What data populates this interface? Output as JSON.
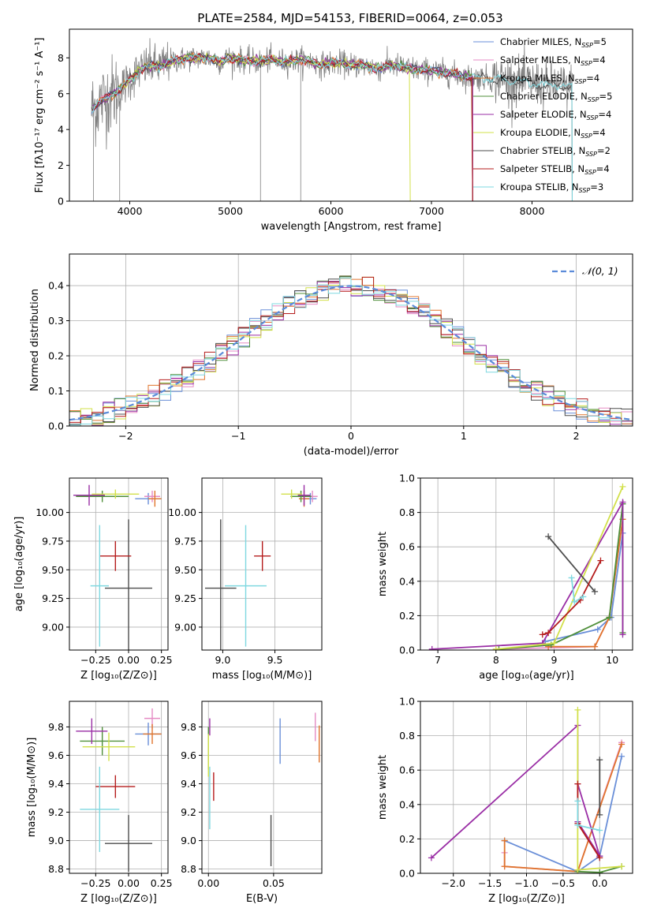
{
  "figure": {
    "title": "PLATE=2584, MJD=54153, FIBERID=0064, z=0.053",
    "legend": [
      {
        "label": "Chabrier MILES, N",
        "sub": "SSP",
        "count": "=5",
        "color": "#6a8fd8"
      },
      {
        "label": "Salpeter MILES, N",
        "sub": "SSP",
        "count": "=4",
        "color": "#e58bc4"
      },
      {
        "label": "Kroupa MILES, N",
        "sub": "SSP",
        "count": "=4",
        "color": "#e0752d"
      },
      {
        "label": "Chabrier ELODIE, N",
        "sub": "SSP",
        "count": "=5",
        "color": "#4f8f3a"
      },
      {
        "label": "Salpeter ELODIE, N",
        "sub": "SSP",
        "count": "=4",
        "color": "#9a2ea5"
      },
      {
        "label": "Kroupa ELODIE, N",
        "sub": "SSP",
        "count": "=4",
        "color": "#d2e04a"
      },
      {
        "label": "Chabrier STELIB, N",
        "sub": "SSP",
        "count": "=2",
        "color": "#4d4d4d"
      },
      {
        "label": "Salpeter STELIB, N",
        "sub": "SSP",
        "count": "=4",
        "color": "#b51c1c"
      },
      {
        "label": "Kroupa STELIB, N",
        "sub": "SSP",
        "count": "=3",
        "color": "#7fd8e0"
      }
    ],
    "data_color": "#808080"
  },
  "chart_data": [
    {
      "id": "spectrum",
      "type": "line",
      "xlabel": "wavelength [Angstrom, rest frame]",
      "ylabel": "Flux [fλ10⁻¹⁷ erg cm⁻² s⁻¹ A⁻¹]",
      "xlim": [
        3400,
        9000
      ],
      "ylim": [
        0,
        9.6
      ],
      "xticks": [
        4000,
        5000,
        6000,
        7000,
        8000
      ],
      "yticks": [
        0,
        2,
        4,
        6,
        8
      ],
      "continuum": [
        [
          3620,
          5.1
        ],
        [
          3700,
          5.5
        ],
        [
          3800,
          5.9
        ],
        [
          3900,
          6.2
        ],
        [
          4000,
          6.8
        ],
        [
          4100,
          7.3
        ],
        [
          4200,
          7.6
        ],
        [
          4300,
          7.5
        ],
        [
          4400,
          7.8
        ],
        [
          4500,
          7.9
        ],
        [
          4600,
          8.0
        ],
        [
          4700,
          8.0
        ],
        [
          4800,
          8.0
        ],
        [
          4900,
          7.8
        ],
        [
          5000,
          8.0
        ],
        [
          5100,
          7.9
        ],
        [
          5200,
          7.8
        ],
        [
          5300,
          7.8
        ],
        [
          5400,
          7.9
        ],
        [
          5500,
          7.8
        ],
        [
          5600,
          7.8
        ],
        [
          5700,
          7.9
        ],
        [
          5800,
          7.8
        ],
        [
          5900,
          7.6
        ],
        [
          6000,
          7.7
        ],
        [
          6100,
          7.7
        ],
        [
          6200,
          7.6
        ],
        [
          6300,
          7.6
        ],
        [
          6400,
          7.5
        ],
        [
          6500,
          7.4
        ],
        [
          6600,
          7.6
        ],
        [
          6700,
          7.5
        ],
        [
          6800,
          7.4
        ],
        [
          6900,
          7.3
        ],
        [
          7000,
          7.3
        ],
        [
          7100,
          7.2
        ],
        [
          7200,
          7.1
        ],
        [
          7300,
          7.0
        ],
        [
          7400,
          6.9
        ],
        [
          7500,
          6.9
        ],
        [
          7600,
          6.8
        ],
        [
          7700,
          6.8
        ],
        [
          7800,
          6.7
        ],
        [
          7900,
          6.7
        ],
        [
          8000,
          6.6
        ],
        [
          8100,
          6.5
        ],
        [
          8200,
          6.5
        ],
        [
          8300,
          6.4
        ],
        [
          8400,
          6.4
        ]
      ],
      "model_starts": [
        3620,
        3650,
        3680,
        3650,
        3630,
        3900,
        3620,
        3620,
        3620
      ],
      "model_ends": [
        7410,
        7410,
        7410,
        7410,
        7410,
        6790,
        8400,
        7410,
        8400
      ]
    },
    {
      "id": "residual-histogram",
      "type": "step",
      "xlabel": "(data-model)/error",
      "ylabel": "Normed distribution",
      "xlim": [
        -2.5,
        2.5
      ],
      "ylim": [
        0,
        0.49
      ],
      "xticks": [
        -2,
        -1,
        0,
        1,
        2
      ],
      "yticks": [
        0.0,
        0.1,
        0.2,
        0.3,
        0.4
      ],
      "bin_width": 0.1,
      "legend": "𝒩(0, 1)",
      "reference_color": "#5b8bd9"
    },
    {
      "id": "age-vs-Z",
      "type": "errorbar",
      "xlabel": "Z [log₁₀(Z/Z⊙)]",
      "ylabel": "age  [log₁₀(age/yr)]",
      "xlim": [
        -0.45,
        0.3
      ],
      "ylim": [
        8.8,
        10.3
      ],
      "xticks": [
        -0.25,
        0.0,
        0.25
      ],
      "yticks": [
        9.0,
        9.25,
        9.5,
        9.75,
        10.0
      ],
      "points": [
        {
          "series": 0,
          "x": 0.15,
          "y": 10.12,
          "xerr": 0.1,
          "yerr": 0.05
        },
        {
          "series": 1,
          "x": 0.18,
          "y": 10.14,
          "xerr": 0.06,
          "yerr": 0.05
        },
        {
          "series": 2,
          "x": 0.2,
          "y": 10.12,
          "xerr": 0.05,
          "yerr": 0.07
        },
        {
          "series": 3,
          "x": -0.2,
          "y": 10.14,
          "xerr": 0.2,
          "yerr": 0.05
        },
        {
          "series": 4,
          "x": -0.3,
          "y": 10.15,
          "xerr": 0.12,
          "yerr": 0.09
        },
        {
          "series": 5,
          "x": -0.1,
          "y": 10.16,
          "xerr": 0.18,
          "yerr": 0.04
        },
        {
          "series": 6,
          "x": 0.0,
          "y": 9.34,
          "xerr": 0.18,
          "yerr": 0.6
        },
        {
          "series": 7,
          "x": -0.1,
          "y": 9.62,
          "xerr": 0.12,
          "yerr": 0.13
        },
        {
          "series": 8,
          "x": -0.22,
          "y": 9.36,
          "xerr": 0.07,
          "yerr": 0.53
        }
      ]
    },
    {
      "id": "age-vs-mass",
      "type": "errorbar",
      "xlabel": "mass [log₁₀(M/M⊙)]",
      "ylabel": "",
      "xlim": [
        8.8,
        9.95
      ],
      "ylim": [
        8.8,
        10.3
      ],
      "xticks": [
        9.0,
        9.5
      ],
      "yticks": [
        9.0,
        9.25,
        9.5,
        9.75,
        10.0
      ],
      "points": [
        {
          "series": 0,
          "x": 9.84,
          "y": 10.12,
          "xerr": 0.06,
          "yerr": 0.05
        },
        {
          "series": 1,
          "x": 9.86,
          "y": 10.14,
          "xerr": 0.05,
          "yerr": 0.05
        },
        {
          "series": 2,
          "x": 9.78,
          "y": 10.12,
          "xerr": 0.05,
          "yerr": 0.07
        },
        {
          "series": 3,
          "x": 9.75,
          "y": 10.14,
          "xerr": 0.1,
          "yerr": 0.05
        },
        {
          "series": 4,
          "x": 9.78,
          "y": 10.15,
          "xerr": 0.06,
          "yerr": 0.09
        },
        {
          "series": 5,
          "x": 9.66,
          "y": 10.16,
          "xerr": 0.1,
          "yerr": 0.04
        },
        {
          "series": 6,
          "x": 8.98,
          "y": 9.34,
          "xerr": 0.15,
          "yerr": 0.6
        },
        {
          "series": 7,
          "x": 9.38,
          "y": 9.62,
          "xerr": 0.08,
          "yerr": 0.13
        },
        {
          "series": 8,
          "x": 9.22,
          "y": 9.36,
          "xerr": 0.2,
          "yerr": 0.53
        }
      ]
    },
    {
      "id": "weight-vs-age",
      "type": "line",
      "xlabel": "age  [log₁₀(age/yr)]",
      "ylabel": "mass weight",
      "xlim": [
        6.7,
        10.35
      ],
      "ylim": [
        0.0,
        1.0
      ],
      "xticks": [
        7,
        8,
        9,
        10
      ],
      "yticks": [
        0.0,
        0.2,
        0.4,
        0.6,
        0.8,
        1.0
      ],
      "series": [
        {
          "series": 0,
          "points": [
            [
              8.85,
              0.05
            ],
            [
              9.75,
              0.12
            ],
            [
              9.98,
              0.19
            ],
            [
              10.18,
              0.68
            ]
          ]
        },
        {
          "series": 1,
          "points": [
            [
              8.0,
              0.005
            ],
            [
              9.7,
              0.02
            ],
            [
              9.95,
              0.19
            ],
            [
              10.18,
              0.76
            ]
          ]
        },
        {
          "series": 2,
          "points": [
            [
              8.9,
              0.02
            ],
            [
              9.7,
              0.02
            ],
            [
              9.95,
              0.19
            ],
            [
              10.18,
              0.76
            ]
          ]
        },
        {
          "series": 3,
          "points": [
            [
              8.05,
              0.005
            ],
            [
              8.95,
              0.03
            ],
            [
              9.95,
              0.19
            ],
            [
              10.18,
              0.85
            ],
            [
              10.18,
              0.1
            ]
          ]
        },
        {
          "series": 4,
          "points": [
            [
              6.9,
              0.005
            ],
            [
              8.8,
              0.04
            ],
            [
              10.18,
              0.86
            ],
            [
              10.18,
              0.09
            ]
          ]
        },
        {
          "series": 5,
          "points": [
            [
              8.0,
              0.005
            ],
            [
              9.0,
              0.04
            ],
            [
              10.18,
              0.95
            ]
          ]
        },
        {
          "series": 6,
          "points": [
            [
              8.9,
              0.66
            ],
            [
              9.7,
              0.34
            ]
          ]
        },
        {
          "series": 7,
          "points": [
            [
              8.8,
              0.09
            ],
            [
              8.9,
              0.1
            ],
            [
              9.45,
              0.29
            ],
            [
              9.8,
              0.52
            ]
          ]
        },
        {
          "series": 8,
          "points": [
            [
              9.3,
              0.42
            ],
            [
              9.35,
              0.28
            ],
            [
              9.5,
              0.31
            ]
          ]
        }
      ]
    },
    {
      "id": "mass-vs-Z",
      "type": "errorbar",
      "xlabel": "Z [log₁₀(Z/Z⊙)]",
      "ylabel": "mass [log₁₀(M/M⊙)]",
      "xlim": [
        -0.45,
        0.3
      ],
      "ylim": [
        8.77,
        9.98
      ],
      "xticks": [
        -0.25,
        0.0,
        0.25
      ],
      "yticks": [
        8.8,
        9.0,
        9.2,
        9.4,
        9.6,
        9.8
      ],
      "points": [
        {
          "series": 0,
          "x": 0.15,
          "y": 9.75,
          "xerr": 0.1,
          "yerr": 0.08
        },
        {
          "series": 1,
          "x": 0.18,
          "y": 9.86,
          "xerr": 0.06,
          "yerr": 0.07
        },
        {
          "series": 2,
          "x": 0.18,
          "y": 9.75,
          "xerr": 0.07,
          "yerr": 0.07
        },
        {
          "series": 3,
          "x": -0.2,
          "y": 9.7,
          "xerr": 0.17,
          "yerr": 0.1
        },
        {
          "series": 4,
          "x": -0.28,
          "y": 9.77,
          "xerr": 0.12,
          "yerr": 0.09
        },
        {
          "series": 5,
          "x": -0.15,
          "y": 9.66,
          "xerr": 0.2,
          "yerr": 0.1
        },
        {
          "series": 6,
          "x": 0.0,
          "y": 8.98,
          "xerr": 0.18,
          "yerr": 0.2
        },
        {
          "series": 7,
          "x": -0.1,
          "y": 9.38,
          "xerr": 0.15,
          "yerr": 0.08
        },
        {
          "series": 8,
          "x": -0.22,
          "y": 9.22,
          "xerr": 0.15,
          "yerr": 0.3
        }
      ]
    },
    {
      "id": "mass-vs-EBV",
      "type": "errorbar",
      "xlabel": "E(B-V)",
      "ylabel": "",
      "xlim": [
        -0.005,
        0.087
      ],
      "ylim": [
        8.77,
        9.98
      ],
      "xticks": [
        0.0,
        0.05
      ],
      "yticks": [
        8.8,
        9.0,
        9.2,
        9.4,
        9.6,
        9.8
      ],
      "points": [
        {
          "series": 0,
          "x": 0.055,
          "y": 9.7,
          "xerr": 0.0,
          "yerr": 0.16
        },
        {
          "series": 1,
          "x": 0.082,
          "y": 9.8,
          "xerr": 0.0,
          "yerr": 0.1
        },
        {
          "series": 2,
          "x": 0.085,
          "y": 9.68,
          "xerr": 0.0,
          "yerr": 0.13
        },
        {
          "series": 3,
          "x": 0.0,
          "y": 9.65,
          "xerr": 0.0,
          "yerr": 0.15
        },
        {
          "series": 4,
          "x": 0.001,
          "y": 9.8,
          "xerr": 0.0,
          "yerr": 0.06
        },
        {
          "series": 5,
          "x": 0.0,
          "y": 9.6,
          "xerr": 0.0,
          "yerr": 0.15
        },
        {
          "series": 6,
          "x": 0.048,
          "y": 9.0,
          "xerr": 0.0,
          "yerr": 0.18
        },
        {
          "series": 7,
          "x": 0.004,
          "y": 9.38,
          "xerr": 0.0,
          "yerr": 0.1
        },
        {
          "series": 8,
          "x": 0.001,
          "y": 9.3,
          "xerr": 0.0,
          "yerr": 0.22
        }
      ]
    },
    {
      "id": "weight-vs-Z",
      "type": "line",
      "xlabel": "Z [log₁₀(Z/Z⊙)]",
      "ylabel": "mass weight",
      "xlim": [
        -2.45,
        0.45
      ],
      "ylim": [
        0.0,
        1.0
      ],
      "xticks": [
        -2.0,
        -1.5,
        -1.0,
        -0.5,
        0.0
      ],
      "yticks": [
        0.0,
        0.2,
        0.4,
        0.6,
        0.8,
        1.0
      ],
      "series": [
        {
          "series": 0,
          "points": [
            [
              -1.3,
              0.19
            ],
            [
              -0.3,
              0.01
            ],
            [
              0.0,
              0.1
            ],
            [
              0.3,
              0.68
            ]
          ]
        },
        {
          "series": 1,
          "points": [
            [
              -1.3,
              0.12
            ],
            [
              -1.3,
              0.04
            ],
            [
              -0.3,
              0.01
            ],
            [
              0.3,
              0.76
            ]
          ]
        },
        {
          "series": 2,
          "points": [
            [
              -1.3,
              0.19
            ],
            [
              -1.3,
              0.04
            ],
            [
              -0.3,
              0.01
            ],
            [
              0.3,
              0.75
            ]
          ]
        },
        {
          "series": 3,
          "points": [
            [
              -0.3,
              0.01
            ],
            [
              0.0,
              0.005
            ],
            [
              0.3,
              0.04
            ]
          ]
        },
        {
          "series": 4,
          "points": [
            [
              -2.3,
              0.09
            ],
            [
              -0.3,
              0.86
            ],
            [
              -0.3,
              0.3
            ],
            [
              0.0,
              0.1
            ],
            [
              -0.3,
              0.52
            ]
          ]
        },
        {
          "series": 5,
          "points": [
            [
              -0.3,
              0.95
            ],
            [
              -0.3,
              0.02
            ],
            [
              0.3,
              0.04
            ]
          ]
        },
        {
          "series": 6,
          "points": [
            [
              0.0,
              0.66
            ],
            [
              0.0,
              0.34
            ]
          ]
        },
        {
          "series": 7,
          "points": [
            [
              -0.3,
              0.52
            ],
            [
              -0.3,
              0.29
            ],
            [
              0.0,
              0.09
            ]
          ]
        },
        {
          "series": 8,
          "points": [
            [
              -0.3,
              0.42
            ],
            [
              -0.3,
              0.28
            ],
            [
              0.0,
              0.25
            ]
          ]
        }
      ]
    }
  ]
}
